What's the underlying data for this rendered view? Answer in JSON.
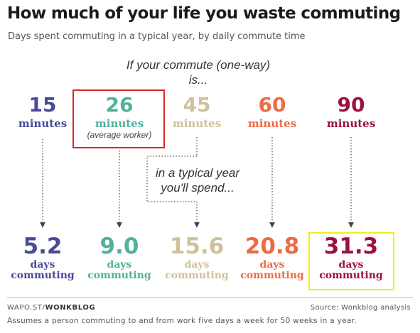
{
  "header": {
    "title": "How much of your life you waste commuting",
    "subtitle": "Days spent commuting in a typical year, by daily commute time"
  },
  "labels": {
    "intro": "If your commute (one-way) is...",
    "mid": "in a typical year you'll spend...",
    "minutes_unit": "minutes",
    "days_word": "days",
    "commuting_word": "commuting"
  },
  "footer": {
    "credit_prefix": "WAPO.ST/",
    "credit_brand": "WONKBLOG",
    "source": "Source: Wonkblog analysis",
    "note": "Assumes a person commuting to and from work five days a week for 50 weeks in a year."
  },
  "chart_data": {
    "type": "table",
    "columns": [
      {
        "minutes": "15",
        "days": "5.2",
        "note": "",
        "color": "#4a4a9a"
      },
      {
        "minutes": "26",
        "days": "9.0",
        "note": "(average worker)",
        "color": "#4fb29a"
      },
      {
        "minutes": "45",
        "days": "15.6",
        "note": "",
        "color": "#cfc19b"
      },
      {
        "minutes": "60",
        "days": "20.8",
        "note": "",
        "color": "#ef6a43"
      },
      {
        "minutes": "90",
        "days": "31.3",
        "note": "",
        "color": "#9c1044"
      }
    ],
    "highlights": {
      "top_box_color": "#d62a2a",
      "bottom_box_color": "#f2ee1a"
    }
  }
}
